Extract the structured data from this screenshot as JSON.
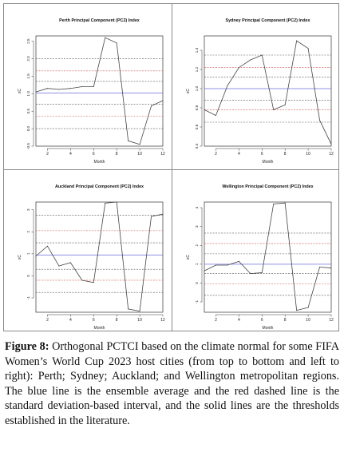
{
  "figure": {
    "caption_label": "Figure 8:",
    "caption_text": " Orthogonal PCTCI based on the climate normal for some FIFA Women’s World Cup 2023 host cities (from top to bottom and left to right): Perth; Sydney; Auckland; and Wellington metropolitan regions. The blue line is the ensemble average and the red dashed line is the standard deviation-based interval, and the solid lines are the thresholds established in the literature."
  },
  "colors": {
    "series_line": "#444444",
    "ensemble_average": "#6b6bdc",
    "sd_interval": "#d9534f",
    "threshold_line": "#555555"
  },
  "chart_data": [
    {
      "type": "line",
      "title": "Perth Principal Component (PC2) Index",
      "xlabel": "Month",
      "ylabel": "xC",
      "x": [
        1,
        2,
        3,
        4,
        5,
        6,
        7,
        8,
        9,
        10,
        11,
        12
      ],
      "values": [
        1.05,
        1.15,
        1.12,
        1.15,
        1.2,
        1.2,
        2.6,
        2.45,
        -0.35,
        -0.45,
        0.65,
        0.8
      ],
      "xlim": [
        1,
        12
      ],
      "ylim": [
        -0.5,
        2.65
      ],
      "x_ticks": [
        2,
        4,
        6,
        8,
        10,
        12
      ],
      "y_ticks": [
        -0.5,
        0.0,
        0.5,
        1.0,
        1.5,
        2.0,
        2.5
      ],
      "y_tick_labels": [
        "-0.5",
        "0.0",
        "0.5",
        "1.0",
        "1.5",
        "2.0",
        "2.5"
      ],
      "ensemble_average": 1.02,
      "sd_lines": [
        0.35,
        1.65
      ],
      "threshold_lines": [
        0.0,
        0.7,
        1.35,
        2.0
      ]
    },
    {
      "type": "line",
      "title": "Sydney Principal Component (PC2) Index",
      "xlabel": "Month",
      "ylabel": "xC",
      "x": [
        1,
        2,
        3,
        4,
        5,
        6,
        7,
        8,
        9,
        10,
        11,
        12
      ],
      "values": [
        0.78,
        0.72,
        1.03,
        1.22,
        1.3,
        1.35,
        0.78,
        0.83,
        1.5,
        1.42,
        0.67,
        0.42
      ],
      "xlim": [
        1,
        12
      ],
      "ylim": [
        0.4,
        1.55
      ],
      "x_ticks": [
        2,
        4,
        6,
        8,
        10,
        12
      ],
      "y_ticks": [
        0.4,
        0.6,
        0.8,
        1.0,
        1.2,
        1.4
      ],
      "y_tick_labels": [
        "0.4",
        "0.6",
        "0.8",
        "1.0",
        "1.2",
        "1.4"
      ],
      "ensemble_average": 1.0,
      "sd_lines": [
        0.78,
        1.22
      ],
      "threshold_lines": [
        0.65,
        0.88,
        1.12,
        1.35
      ]
    },
    {
      "type": "line",
      "title": "Auckland Principal Component (PC2) Index",
      "xlabel": "Month",
      "ylabel": "xC",
      "x": [
        1,
        2,
        3,
        4,
        5,
        6,
        7,
        8,
        9,
        10,
        11,
        12
      ],
      "values": [
        0.9,
        1.35,
        0.45,
        0.6,
        -0.2,
        -0.3,
        3.3,
        3.35,
        -1.5,
        -1.6,
        2.7,
        2.8
      ],
      "xlim": [
        1,
        12
      ],
      "ylim": [
        -1.65,
        3.35
      ],
      "x_ticks": [
        2,
        4,
        6,
        8,
        10,
        12
      ],
      "y_ticks": [
        -1,
        0,
        1,
        2,
        3
      ],
      "y_tick_labels": [
        "-1",
        "0",
        "1",
        "2",
        "3"
      ],
      "ensemble_average": 0.95,
      "sd_lines": [
        -0.2,
        2.05
      ],
      "threshold_lines": [
        -0.75,
        0.3,
        1.5,
        2.75
      ]
    },
    {
      "type": "line",
      "title": "Wellington Principal Component (PC2) Index",
      "xlabel": "Month",
      "ylabel": "xC",
      "x": [
        1,
        2,
        3,
        4,
        5,
        6,
        7,
        8,
        9,
        10,
        11,
        12
      ],
      "values": [
        0.65,
        0.95,
        0.95,
        1.15,
        0.5,
        0.55,
        4.2,
        4.25,
        -1.45,
        -1.3,
        0.85,
        0.8
      ],
      "xlim": [
        1,
        12
      ],
      "ylim": [
        -1.55,
        4.3
      ],
      "x_ticks": [
        2,
        4,
        6,
        8,
        10,
        12
      ],
      "y_ticks": [
        -1,
        0,
        1,
        2,
        3,
        4
      ],
      "y_tick_labels": [
        "-1",
        "0",
        "1",
        "2",
        "3",
        "4"
      ],
      "ensemble_average": 1.0,
      "sd_lines": [
        -0.05,
        2.1
      ],
      "threshold_lines": [
        -0.65,
        0.5,
        1.55,
        2.65
      ]
    }
  ]
}
